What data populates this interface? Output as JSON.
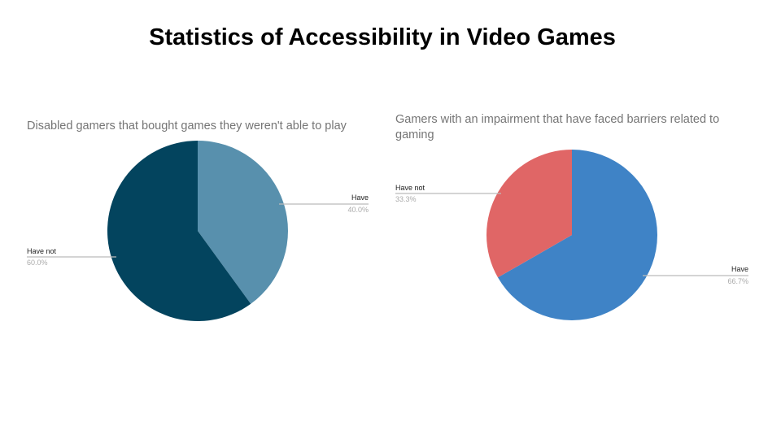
{
  "title": "Statistics of Accessibility in Video Games",
  "chart_data": [
    {
      "type": "pie",
      "title": "Disabled gamers that bought games they weren't able to play",
      "slices": [
        {
          "label": "Have",
          "value": 40.0,
          "display": "40.0%",
          "color": "#5890ad"
        },
        {
          "label": "Have not",
          "value": 60.0,
          "display": "60.0%",
          "color": "#03445e"
        }
      ]
    },
    {
      "type": "pie",
      "title": "Gamers with an impairment that have faced barriers related to gaming",
      "slices": [
        {
          "label": "Have",
          "value": 66.7,
          "display": "66.7%",
          "color": "#3f83c6"
        },
        {
          "label": "Have not",
          "value": 33.3,
          "display": "33.3%",
          "color": "#e06666"
        }
      ]
    }
  ]
}
